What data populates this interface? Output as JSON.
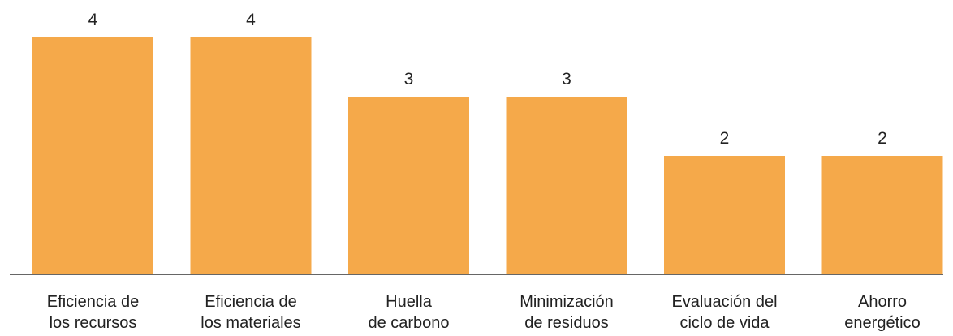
{
  "chart_data": {
    "type": "bar",
    "categories": [
      [
        "Eficiencia de",
        "los recursos"
      ],
      [
        "Eficiencia de",
        "los materiales"
      ],
      [
        "Huella",
        "de carbono"
      ],
      [
        "Minimización",
        "de residuos"
      ],
      [
        "Evaluación del",
        "ciclo de vida"
      ],
      [
        "Ahorro",
        "energético"
      ]
    ],
    "values": [
      4,
      4,
      3,
      3,
      2,
      2
    ],
    "value_labels": [
      "4",
      "4",
      "3",
      "3",
      "2",
      "2"
    ],
    "bar_color": "#F5A94A",
    "axis_color": "#333333",
    "ylim": [
      0,
      4.2
    ],
    "grid": false,
    "title": "",
    "xlabel": "",
    "ylabel": ""
  }
}
